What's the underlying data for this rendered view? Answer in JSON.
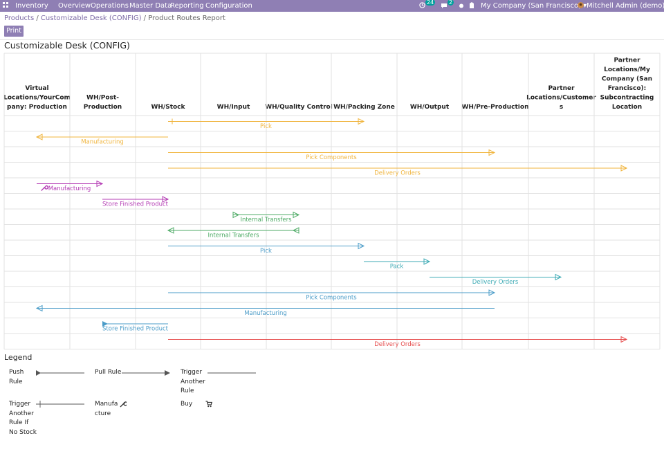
{
  "navbar": {
    "app_name": "Inventory",
    "menu": [
      "Overview",
      "Operations",
      "Master Data",
      "Reporting",
      "Configuration"
    ],
    "activity_count": "24",
    "message_count": "2",
    "company": "My Company (San Francisco)",
    "user": "Mitchell Admin (demo)"
  },
  "breadcrumb": {
    "products": "Products",
    "sep": " / ",
    "product": "Customizable Desk (CONFIG)",
    "current": "Product Routes Report"
  },
  "print_label": "Print",
  "title": "Customizable Desk (CONFIG)",
  "columns": [
    [
      "Virtual",
      "Locations/YourCom",
      "pany: Production"
    ],
    [
      "WH/Post-",
      "Production"
    ],
    [
      "WH/Stock"
    ],
    [
      "WH/Input"
    ],
    [
      "WH/Quality Control"
    ],
    [
      "WH/Packing Zone"
    ],
    [
      "WH/Output"
    ],
    [
      "WH/Pre-Production"
    ],
    [
      "Partner",
      "Locations/Customer",
      "s"
    ],
    [
      "Partner",
      "Locations/My",
      "Company (San",
      "Francisco):",
      "Subcontracting",
      "Location"
    ]
  ],
  "colors": {
    "yellow": "#f0b43c",
    "purple": "#b43cb4",
    "green": "#4caa64",
    "blue": "#4b9cc8",
    "teal": "#3caab4",
    "red": "#e64b4b"
  },
  "rules": [
    {
      "label": "Pick",
      "from": 2,
      "to": 5,
      "kind": "pull",
      "color": "yellow",
      "trigger": true
    },
    {
      "label": "Manufacturing",
      "from": 2,
      "to": 0,
      "kind": "pull",
      "color": "yellow"
    },
    {
      "label": "Pick Components",
      "from": 2,
      "to": 7,
      "kind": "pull",
      "color": "yellow"
    },
    {
      "label": "Delivery Orders",
      "from": 2,
      "to": 9,
      "kind": "pull",
      "color": "yellow"
    },
    {
      "label": "Manufacturing",
      "from": 0,
      "to": 1,
      "kind": "pull",
      "color": "purple",
      "manufacture": true
    },
    {
      "label": "Store Finished Product",
      "from": 1,
      "to": 2,
      "kind": "pull",
      "color": "purple"
    },
    {
      "label": "Internal Transfers",
      "from": 3,
      "to": 4,
      "kind": "both",
      "color": "green"
    },
    {
      "label": "Internal Transfers",
      "from": 4,
      "to": 2,
      "kind": "both",
      "color": "green"
    },
    {
      "label": "Pick",
      "from": 2,
      "to": 5,
      "kind": "pull",
      "color": "blue"
    },
    {
      "label": "Pack",
      "from": 5,
      "to": 6,
      "kind": "pull",
      "color": "teal"
    },
    {
      "label": "Delivery Orders",
      "from": 6,
      "to": 8,
      "kind": "pull",
      "color": "teal"
    },
    {
      "label": "Pick Components",
      "from": 2,
      "to": 7,
      "kind": "pull",
      "color": "blue"
    },
    {
      "label": "Manufacturing",
      "from": 7,
      "to": 0,
      "kind": "pull",
      "color": "blue"
    },
    {
      "label": "Store Finished Product",
      "from": 1,
      "to": 2,
      "kind": "push",
      "color": "blue"
    },
    {
      "label": "Delivery Orders",
      "from": 2,
      "to": 9,
      "kind": "pull",
      "color": "red"
    }
  ],
  "legend": {
    "title": "Legend",
    "push": "Push Rule",
    "pull": "Pull Rule",
    "trigger": "Trigger Another Rule",
    "trigger_no_stock": "Trigger Another Rule If No Stock",
    "manufacture": "Manufacture",
    "buy": "Buy"
  }
}
